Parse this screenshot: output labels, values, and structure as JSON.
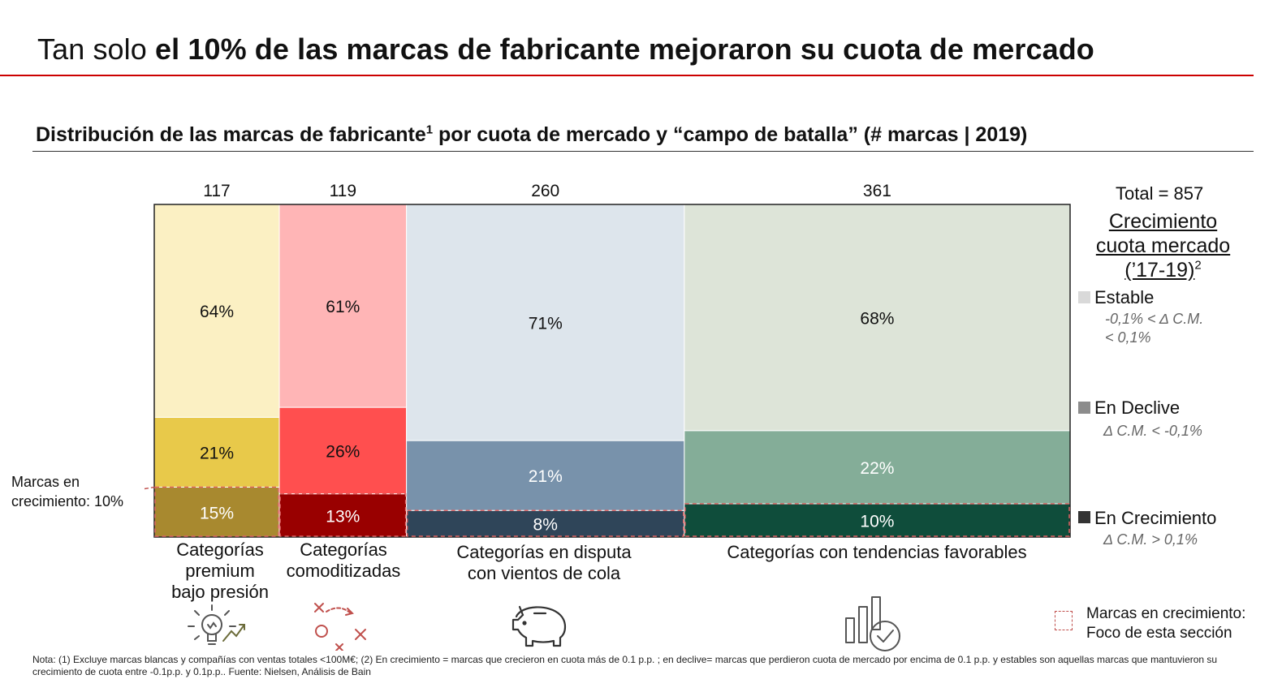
{
  "header": {
    "title_normal": "Tan solo ",
    "title_bold": "el 10% de las marcas de fabricante mejoraron su cuota de mercado",
    "subtitle_a": "Distribución de las marcas de fabricante",
    "subtitle_sup": "1",
    "subtitle_b": " por cuota de mercado y “campo de batalla” (# marcas | 2019)"
  },
  "chart_data": {
    "type": "bar",
    "subtype": "marimekko (100% stacked, variable width)",
    "categories": [
      "Categorías premium bajo presión",
      "Categorías comoditizadas",
      "Categorías en disputa con vientos de cola",
      "Categorías con tendencias favorables"
    ],
    "category_lines": [
      [
        "Categorías",
        "premium",
        "bajo presión"
      ],
      [
        "Categorías",
        "comoditizadas"
      ],
      [
        "Categorías en disputa",
        "con vientos de cola"
      ],
      [
        "Categorías con tendencias favorables"
      ]
    ],
    "widths": [
      117,
      119,
      260,
      361
    ],
    "width_labels": [
      "117",
      "119",
      "260",
      "361"
    ],
    "series": [
      {
        "name": "En Crecimiento",
        "values": [
          15,
          13,
          8,
          10
        ],
        "labels": [
          "15%",
          "13%",
          "8%",
          "10%"
        ],
        "colors": [
          "#a8892f",
          "#990000",
          "#2f4559",
          "#0f4d3b"
        ]
      },
      {
        "name": "En Declive",
        "values": [
          21,
          26,
          21,
          22
        ],
        "labels": [
          "21%",
          "26%",
          "21%",
          "22%"
        ],
        "colors": [
          "#e8c94a",
          "#ff4f4f",
          "#7892ab",
          "#84ad98"
        ]
      },
      {
        "name": "Estable",
        "values": [
          64,
          61,
          71,
          68
        ],
        "labels": [
          "64%",
          "61%",
          "71%",
          "68%"
        ],
        "colors": [
          "#fbf0c3",
          "#ffb5b6",
          "#dde5ec",
          "#dde4d8"
        ]
      }
    ],
    "label_colors": {
      "dark": "#111111",
      "light": "#ffffff"
    },
    "ylim": [
      0,
      100
    ],
    "total_label": "Total = 857",
    "highlight_series": "En Crecimiento"
  },
  "legend": {
    "title_line1": "Crecimiento",
    "title_line2": "cuota mercado",
    "title_line3": "(’17-19)",
    "title_sup": "2",
    "items": [
      {
        "label": "Estable",
        "desc_line1": "-0,1% < Δ C.M.",
        "desc_line2": "< 0,1%",
        "color": "#d9d9d9"
      },
      {
        "label": "En Declive",
        "desc_line1": "Δ C.M. < -0,1%",
        "color": "#8c8c8c"
      },
      {
        "label": "En Crecimiento",
        "desc_line1": "Δ C.M. > 0,1%",
        "color": "#333333"
      }
    ]
  },
  "side_label": {
    "line1": "Marcas en",
    "line2": "crecimiento: 10%"
  },
  "focus_legend": {
    "line1": "Marcas en crecimiento:",
    "line2": "Foco de esta sección",
    "color": "#c0504d"
  },
  "icons": [
    "lightbulb-growth-icon",
    "strategy-play-icon",
    "piggy-bank-icon",
    "bar-chart-check-icon"
  ],
  "note": "Nota: (1) Excluye marcas blancas y compañías con ventas totales <100M€; (2) En crecimiento = marcas que crecieron en cuota más de 0.1 p.p. ; en declive= marcas que perdieron cuota de mercado por encima de 0.1 p.p. y estables son aquellas marcas que mantuvieron su crecimiento de cuota entre -0.1p.p. y 0.1p.p.. Fuente: Nielsen, Análisis de Bain"
}
